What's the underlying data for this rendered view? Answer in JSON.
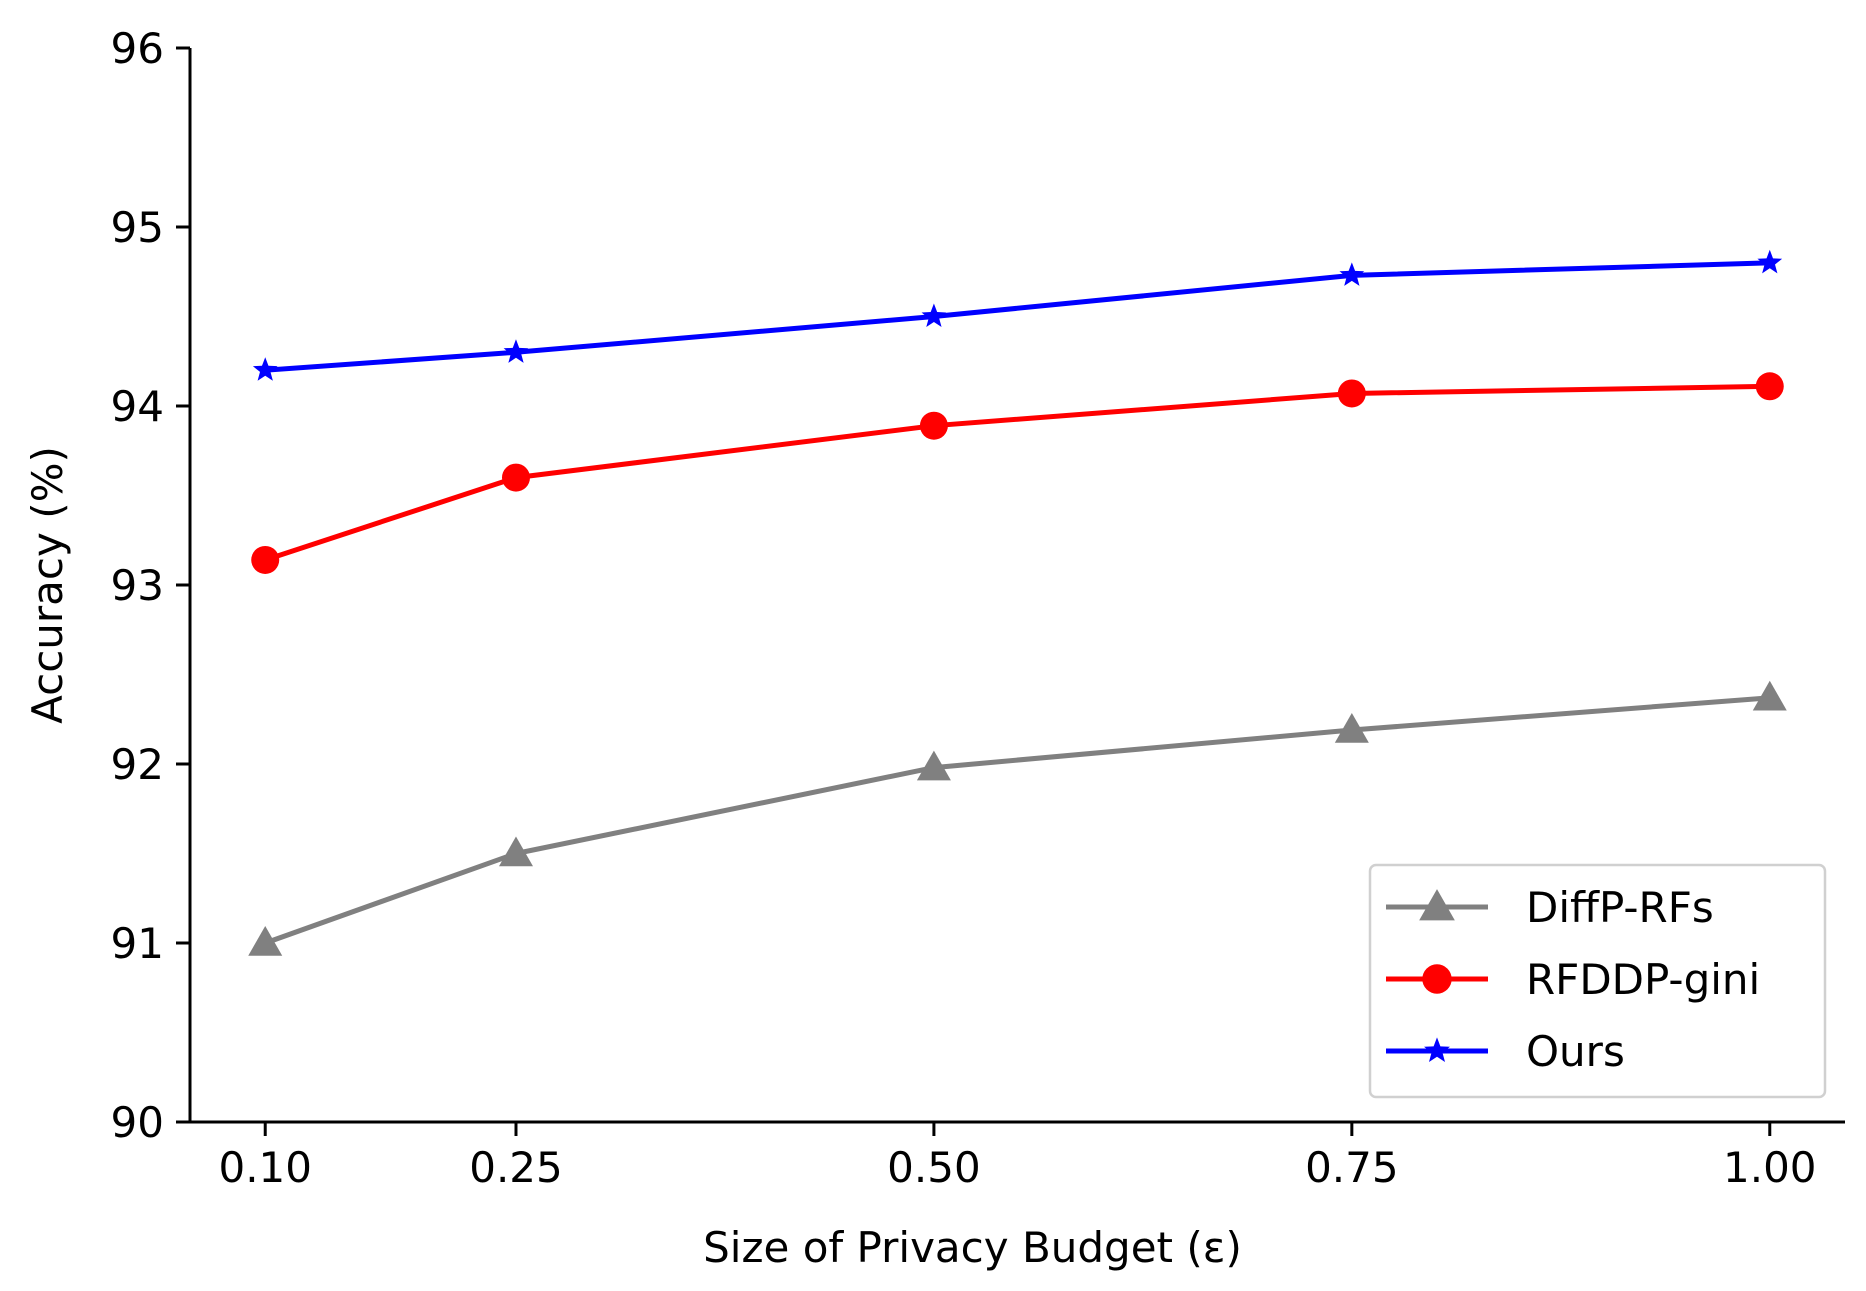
{
  "chart_data": {
    "type": "line",
    "title": "",
    "xlabel": "Size of Privacy Budget (ε)",
    "ylabel": "Accuracy (%)",
    "x": [
      0.1,
      0.25,
      0.5,
      0.75,
      1.0
    ],
    "x_tick_labels": [
      "0.10",
      "0.25",
      "0.50",
      "0.75",
      "1.00"
    ],
    "y_ticks": [
      90,
      91,
      92,
      93,
      94,
      95,
      96
    ],
    "y_tick_labels": [
      "90",
      "91",
      "92",
      "93",
      "94",
      "95",
      "96"
    ],
    "xlim": [
      0.055,
      1.045
    ],
    "ylim": [
      90,
      96
    ],
    "grid": false,
    "legend_position": "lower-right",
    "series": [
      {
        "name": "DiffP-RFs",
        "color": "#808080",
        "marker": "triangle",
        "values": [
          91.0,
          91.5,
          91.98,
          92.19,
          92.37
        ]
      },
      {
        "name": "RFDDP-gini",
        "color": "#ff0000",
        "marker": "circle",
        "values": [
          93.14,
          93.6,
          93.89,
          94.07,
          94.11
        ]
      },
      {
        "name": "Ours",
        "color": "#0000ff",
        "marker": "star",
        "values": [
          94.2,
          94.3,
          94.5,
          94.73,
          94.8
        ]
      }
    ]
  }
}
